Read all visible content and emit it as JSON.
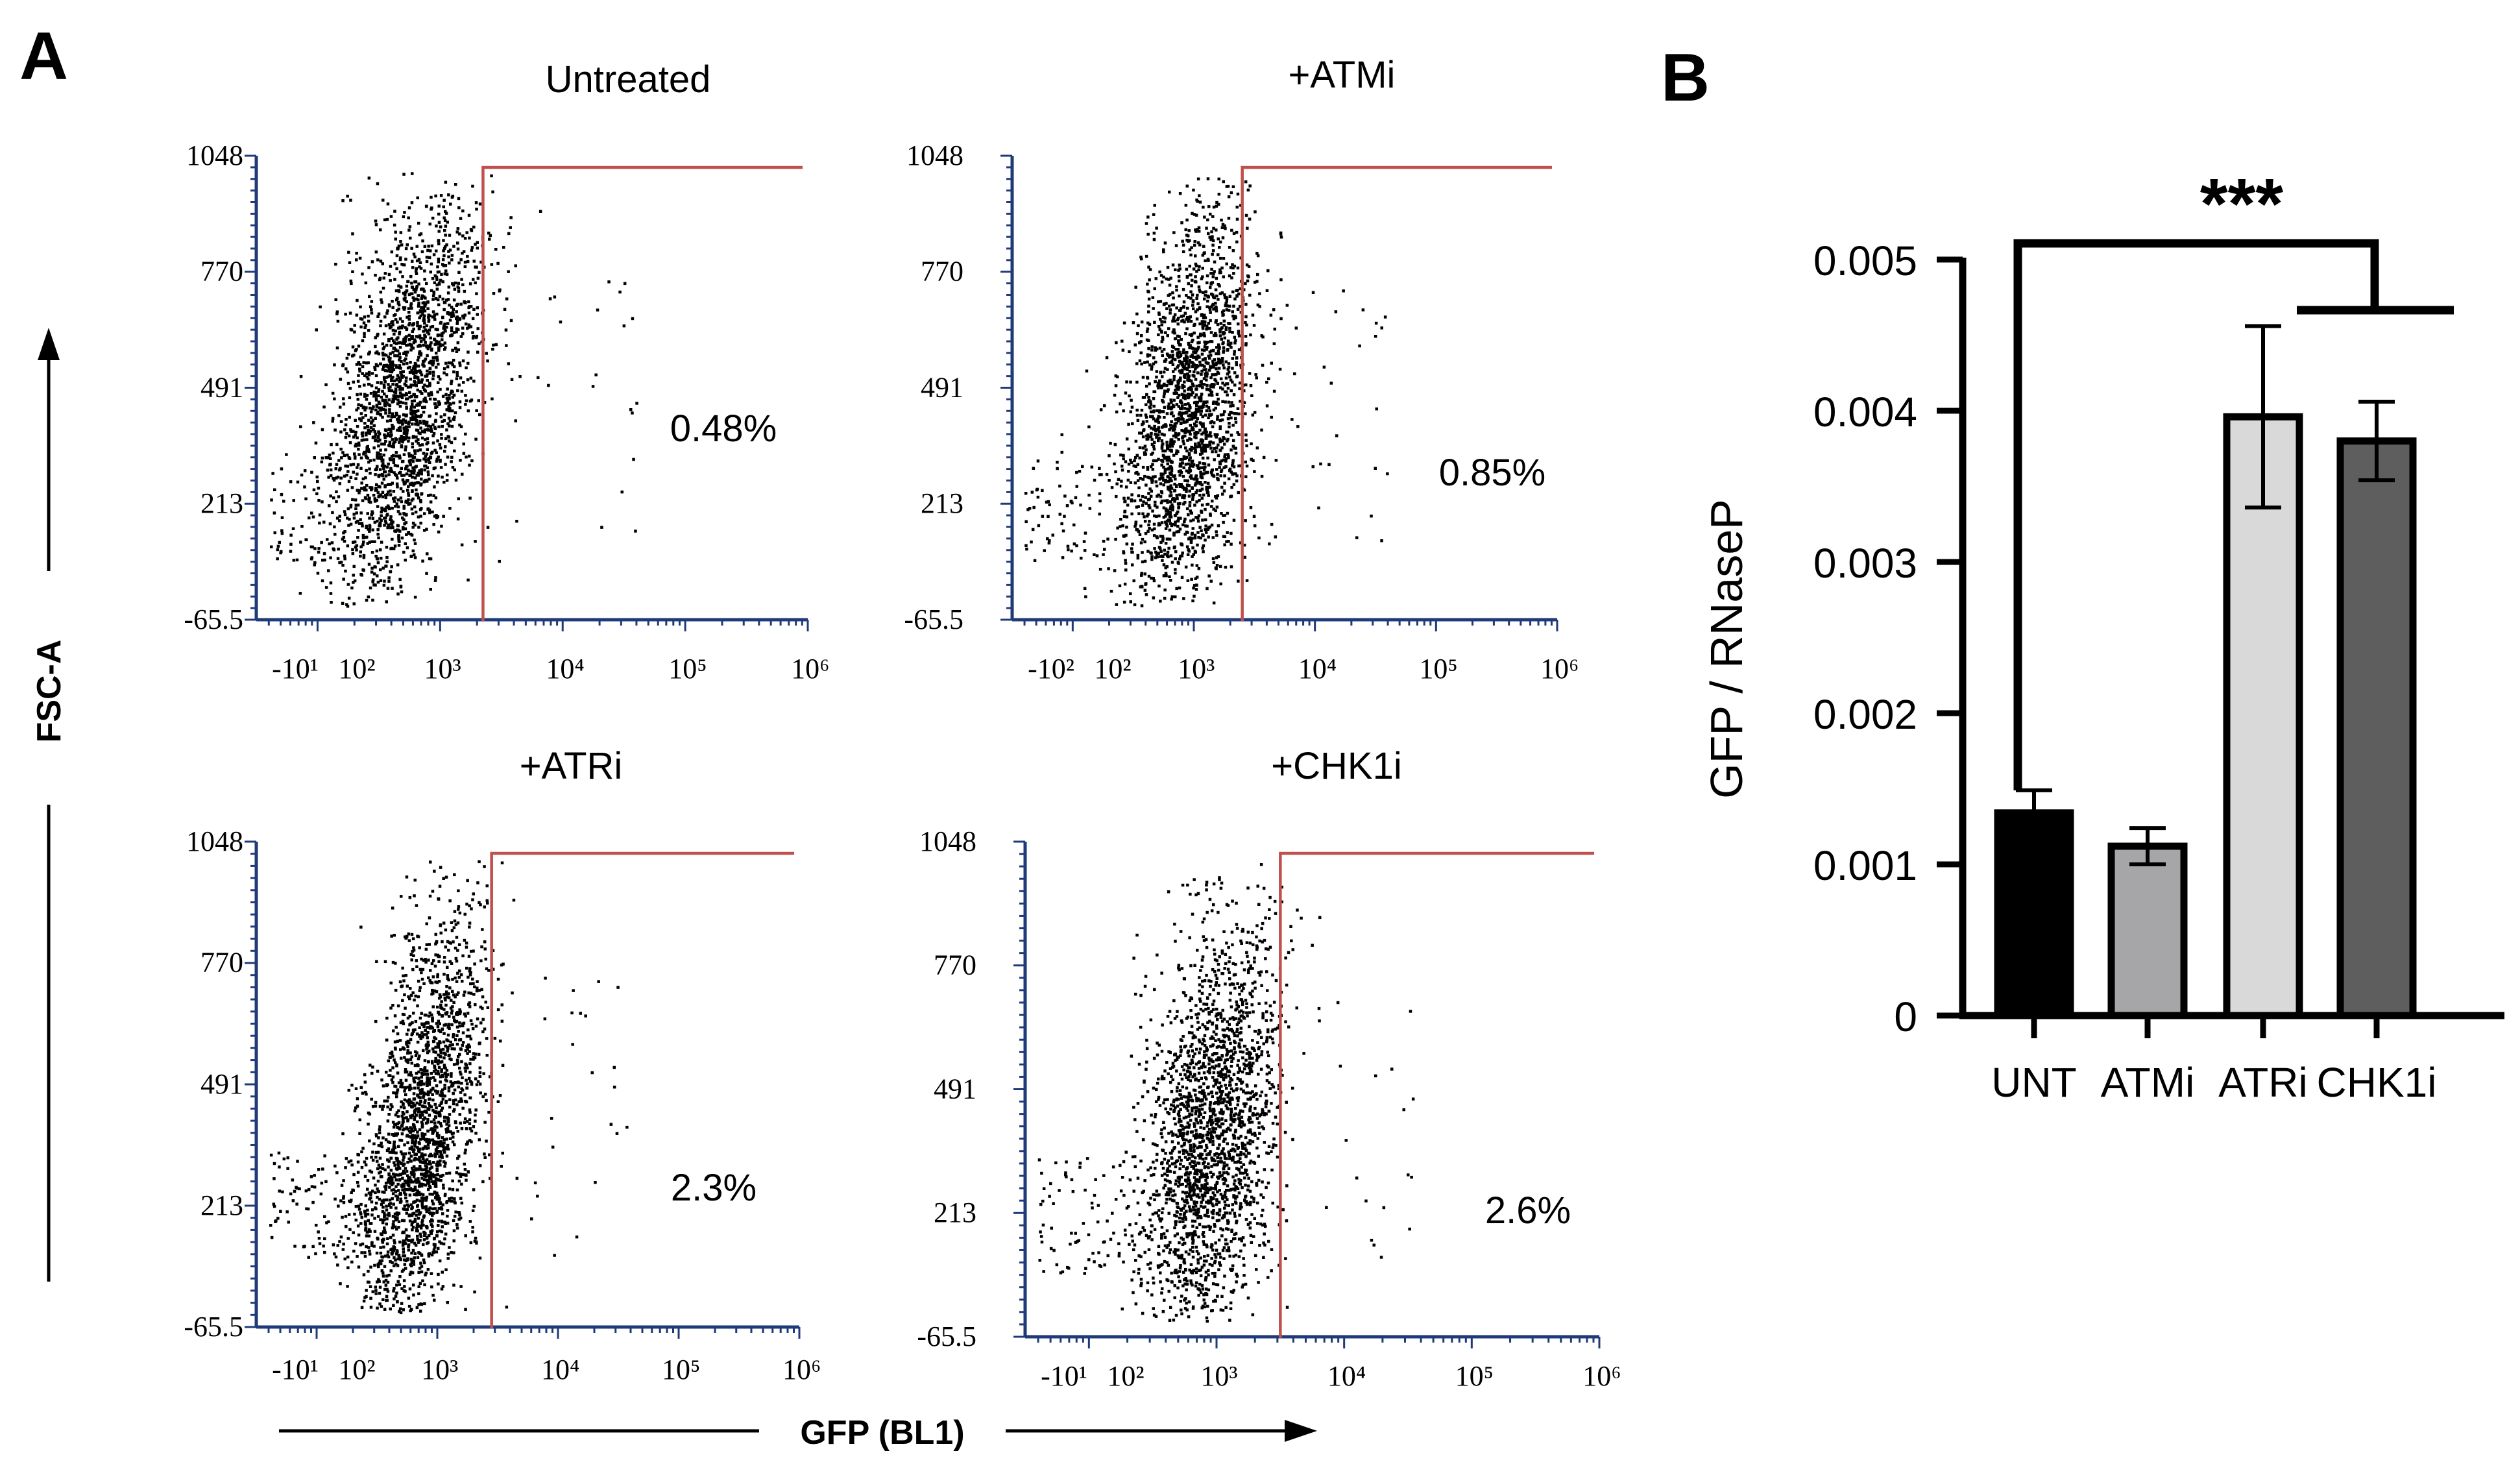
{
  "figure": {
    "panel_a_label": "A",
    "panel_b_label": "B",
    "a_y_axis_label": "FSC-A",
    "a_x_axis_label": "GFP (BL1)",
    "colors": {
      "gate": "#c0504d",
      "axis": "#1f3a78",
      "dots": "#000000"
    }
  },
  "chart_data": [
    {
      "type": "scatter",
      "title": "Untreated",
      "ylabel": "FSC-A",
      "xlabel": "GFP (BL1)",
      "y_ticks": [
        "1048",
        "770",
        "491",
        "213",
        "-65.5"
      ],
      "x_ticks": [
        "-10¹",
        "10²",
        "10³",
        "10⁴",
        "10⁵",
        "10⁶"
      ],
      "gate_percent": "0.48%",
      "gate_x_decade": 3.35
    },
    {
      "type": "scatter",
      "title": "+ATMi",
      "ylabel": "FSC-A",
      "xlabel": "GFP (BL1)",
      "y_ticks": [
        "1048",
        "770",
        "491",
        "213",
        "-65.5"
      ],
      "x_ticks": [
        "-10²",
        "10²",
        "10³",
        "10⁴",
        "10⁵",
        "10⁶"
      ],
      "gate_percent": "0.85%",
      "gate_x_decade": 3.4
    },
    {
      "type": "scatter",
      "title": "+ATRi",
      "ylabel": "FSC-A",
      "xlabel": "GFP (BL1)",
      "y_ticks": [
        "1048",
        "770",
        "491",
        "213",
        "-65.5"
      ],
      "x_ticks": [
        "-10¹",
        "10²",
        "10³",
        "10⁴",
        "10⁵",
        "10⁶"
      ],
      "gate_percent": "2.3%",
      "gate_x_decade": 3.45
    },
    {
      "type": "scatter",
      "title": "+CHK1i",
      "ylabel": "FSC-A",
      "xlabel": "GFP (BL1)",
      "y_ticks": [
        "1048",
        "770",
        "491",
        "213",
        "-65.5"
      ],
      "x_ticks": [
        "-10¹",
        "10²",
        "10³",
        "10⁴",
        "10⁵",
        "10⁶"
      ],
      "gate_percent": "2.6%",
      "gate_x_decade": 3.5
    },
    {
      "type": "bar",
      "title": "",
      "categories": [
        "UNT",
        "ATMi",
        "ATRi",
        "CHK1i"
      ],
      "values": [
        0.00134,
        0.00112,
        0.00396,
        0.0038
      ],
      "errors": [
        0.00015,
        0.00012,
        0.0006,
        0.00026
      ],
      "colors": [
        "#000000",
        "#a6a6a8",
        "#d9d9d9",
        "#5e5e5e"
      ],
      "xlabel": "",
      "ylabel": "GFP / RNaseP",
      "ylim": [
        0,
        0.005
      ],
      "y_ticks": [
        "0.005",
        "0.004",
        "0.003",
        "0.002",
        "0.001",
        "0"
      ],
      "y_tick_values": [
        0.005,
        0.004,
        0.003,
        0.002,
        0.001,
        0
      ],
      "significance": "***"
    }
  ]
}
